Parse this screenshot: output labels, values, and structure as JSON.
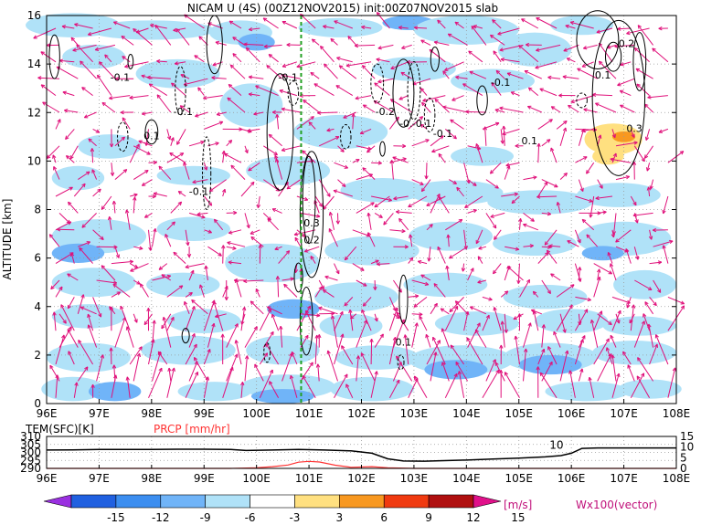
{
  "chart_data": [
    {
      "type": "heatmap",
      "title": "NICAM U (4S) (00Z12NOV2015) init:00Z07NOV2015 slab",
      "xlabel": "",
      "ylabel": "ALTITUDE [km]",
      "x_ticks": [
        "96E",
        "97E",
        "98E",
        "99E",
        "100E",
        "101E",
        "102E",
        "103E",
        "104E",
        "105E",
        "106E",
        "107E",
        "108E"
      ],
      "xlim": [
        96,
        108
      ],
      "y_ticks": [
        "0",
        "2",
        "4",
        "6",
        "8",
        "10",
        "12",
        "14",
        "16"
      ],
      "ylim": [
        0,
        16
      ],
      "grid": true,
      "marker_line_lon": 100.85,
      "contour_labels": [
        {
          "text": "-0.1",
          "lon": 97.4,
          "alt": 13.3
        },
        {
          "text": "-0.1",
          "lon": 98.6,
          "alt": 11.9
        },
        {
          "text": "0.1",
          "lon": 98.0,
          "alt": 10.9
        },
        {
          "text": "-0.1",
          "lon": 98.9,
          "alt": 8.6
        },
        {
          "text": "-0.1",
          "lon": 100.6,
          "alt": 13.3
        },
        {
          "text": "0.3",
          "lon": 101.05,
          "alt": 7.3
        },
        {
          "text": "0.2",
          "lon": 101.05,
          "alt": 6.6
        },
        {
          "text": "-0.2",
          "lon": 102.45,
          "alt": 11.9
        },
        {
          "text": "-0.",
          "lon": 102.85,
          "alt": 11.4
        },
        {
          "text": "-0.1",
          "lon": 103.15,
          "alt": 11.4
        },
        {
          "text": "-0.1",
          "lon": 103.55,
          "alt": 11.0
        },
        {
          "text": "-0.1",
          "lon": 104.65,
          "alt": 13.1
        },
        {
          "text": "0.1",
          "lon": 105.2,
          "alt": 10.7
        },
        {
          "text": "0.1",
          "lon": 106.6,
          "alt": 13.4
        },
        {
          "text": "0.2",
          "lon": 107.05,
          "alt": 14.7
        },
        {
          "text": "0.3",
          "lon": 107.2,
          "alt": 11.2
        },
        {
          "text": "0.1",
          "lon": 102.8,
          "alt": 2.4
        }
      ],
      "arrow_color": "#e0107a"
    },
    {
      "type": "line",
      "xlabel": "",
      "x_ticks": [
        "96E",
        "97E",
        "98E",
        "99E",
        "100E",
        "101E",
        "102E",
        "103E",
        "104E",
        "105E",
        "106E",
        "107E",
        "108E"
      ],
      "xlim": [
        96,
        108
      ],
      "left_axis": {
        "label": "TEM(SFC)[K]",
        "ticks": [
          "310",
          "305",
          "300",
          "295",
          "290"
        ],
        "ylim": [
          290,
          310
        ]
      },
      "right_axis": {
        "label": "PRCP [mm/hr]",
        "ticks": [
          "15",
          "10",
          "5",
          "0"
        ],
        "ylim": [
          0,
          15
        ]
      },
      "series": [
        {
          "name": "TEM(SFC)[K]",
          "color": "#000000",
          "x": [
            96,
            96.5,
            97,
            97.5,
            98,
            98.5,
            99,
            99.5,
            99.8,
            100.3,
            100.8,
            101.3,
            101.8,
            102.2,
            102.5,
            102.8,
            103.2,
            103.5,
            104.0,
            104.5,
            105.0,
            105.5,
            105.8,
            106.0,
            106.2,
            106.5,
            107,
            107.5,
            108
          ],
          "values": [
            301.5,
            301.6,
            301.8,
            301.8,
            301.9,
            302.0,
            302.0,
            301.9,
            301.2,
            301.5,
            301.8,
            301.5,
            301.0,
            299.5,
            296.0,
            294.6,
            294.5,
            294.8,
            295.2,
            295.8,
            296.4,
            297.2,
            298.0,
            299.5,
            302.5,
            302.8,
            302.8,
            302.8,
            302.8
          ]
        },
        {
          "name": "PRCP [mm/hr]",
          "color": "#ff3333",
          "x": [
            96,
            99.5,
            100.0,
            100.3,
            100.6,
            100.8,
            101.0,
            101.2,
            101.5,
            101.8,
            102.2,
            102.5,
            103,
            104,
            105,
            106,
            107,
            108
          ],
          "values": [
            0,
            0,
            0.3,
            0.8,
            1.6,
            2.9,
            3.3,
            3.0,
            1.5,
            0.5,
            0.8,
            0.3,
            0,
            0,
            0,
            0,
            0,
            0
          ]
        }
      ],
      "annotations": [
        {
          "text": "10",
          "lon": 105.85,
          "value": 10
        }
      ]
    }
  ],
  "colorbar": {
    "values": [
      "-15",
      "-12",
      "-9",
      "-6",
      "-3",
      "3",
      "6",
      "9",
      "12",
      "15"
    ],
    "unit": "[m/s]",
    "colors": [
      "#9a30e0",
      "#2060e0",
      "#3c8ef0",
      "#70b4f8",
      "#b0e2f8",
      "#ffffff",
      "#ffe080",
      "#f89820",
      "#f03a10",
      "#b01010",
      "#e0108a"
    ]
  },
  "vector_legend": "Wx100(vector)"
}
